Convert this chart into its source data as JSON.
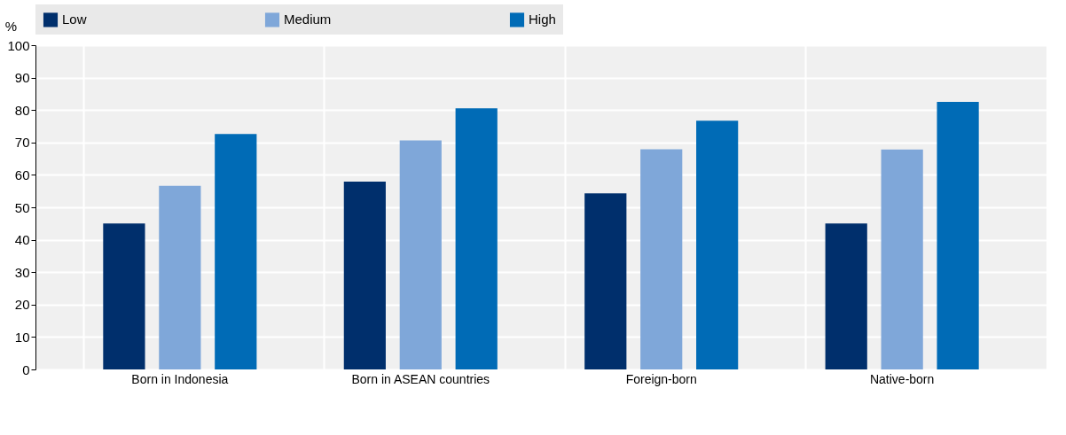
{
  "chart_data": {
    "type": "bar",
    "ylabel": "%",
    "categories": [
      "Born in Indonesia",
      "Born in ASEAN countries",
      "Foreign-born",
      "Native-born"
    ],
    "series": [
      {
        "name": "Low",
        "color": "#002f6c",
        "values": [
          45.0,
          57.9,
          54.3,
          45.0
        ]
      },
      {
        "name": "Medium",
        "color": "#7fa7d9",
        "values": [
          56.6,
          70.6,
          67.9,
          67.8
        ]
      },
      {
        "name": "High",
        "color": "#006bb6",
        "values": [
          72.6,
          80.5,
          76.7,
          82.5
        ]
      }
    ],
    "ylim": [
      0,
      100
    ],
    "yticks": [
      0,
      10,
      20,
      30,
      40,
      50,
      60,
      70,
      80,
      90,
      100
    ],
    "grid": true,
    "legend": "top"
  }
}
